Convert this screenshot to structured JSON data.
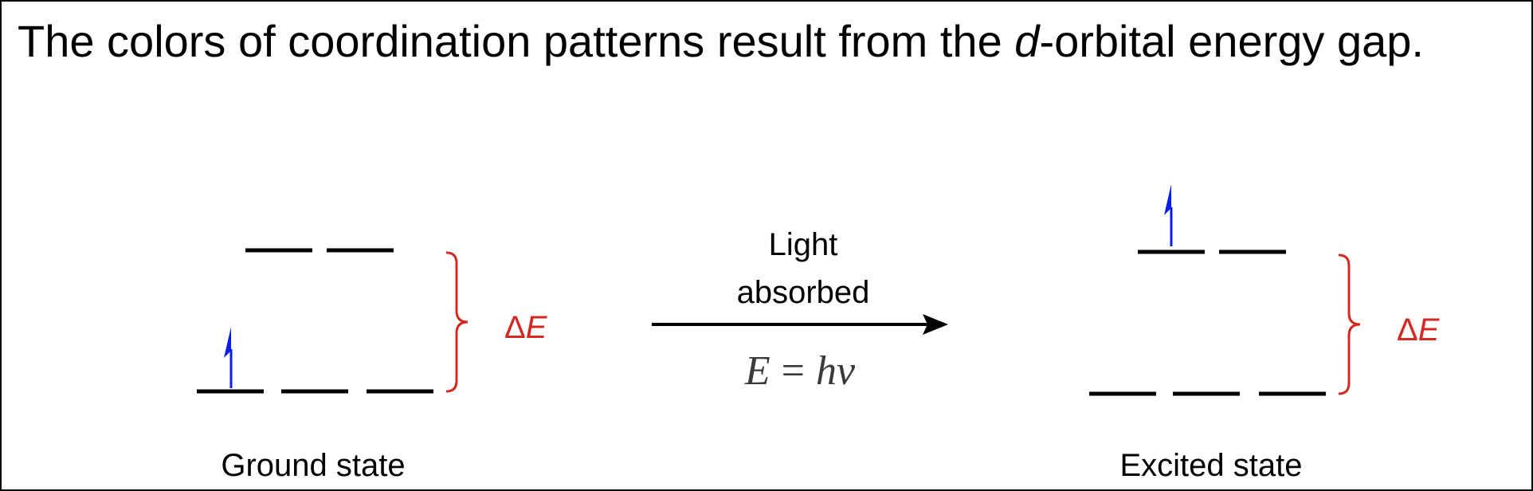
{
  "title": {
    "before": "The colors of coordination patterns result from the ",
    "emphasis": "d",
    "after": "-orbital energy gap."
  },
  "ground_state": {
    "label": "Ground state",
    "gap_label": "Δ",
    "gap_symbol": "E"
  },
  "transition": {
    "line1": "Light",
    "line2": "absorbed",
    "equation_lhs": "E",
    "equation_eq": "=",
    "equation_rhs": "hν"
  },
  "excited_state": {
    "label": "Excited state",
    "gap_label": "Δ",
    "gap_symbol": "E"
  },
  "colors": {
    "orbital": "#000000",
    "electron": "#0a1ee6",
    "bracket": "#d22a22",
    "text": "#000000"
  }
}
